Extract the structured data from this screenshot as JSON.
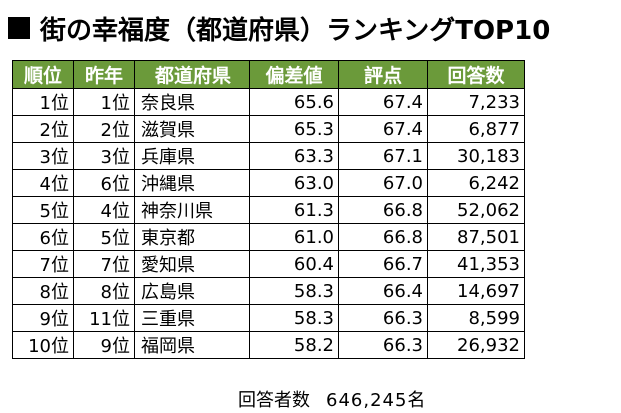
{
  "title": "街の幸福度（都道府県）ランキングTOP10",
  "table": {
    "headers": {
      "rank": "順位",
      "prev": "昨年",
      "pref": "都道府県",
      "dev": "偏差値",
      "score": "評点",
      "resp": "回答数"
    },
    "rows": [
      {
        "rank": "1位",
        "prev": "1位",
        "pref": "奈良県",
        "dev": "65.6",
        "score": "67.4",
        "resp": "7,233"
      },
      {
        "rank": "2位",
        "prev": "2位",
        "pref": "滋賀県",
        "dev": "65.3",
        "score": "67.4",
        "resp": "6,877"
      },
      {
        "rank": "3位",
        "prev": "3位",
        "pref": "兵庫県",
        "dev": "63.3",
        "score": "67.1",
        "resp": "30,183"
      },
      {
        "rank": "4位",
        "prev": "6位",
        "pref": "沖縄県",
        "dev": "63.0",
        "score": "67.0",
        "resp": "6,242"
      },
      {
        "rank": "5位",
        "prev": "4位",
        "pref": "神奈川県",
        "dev": "61.3",
        "score": "66.8",
        "resp": "52,062"
      },
      {
        "rank": "6位",
        "prev": "5位",
        "pref": "東京都",
        "dev": "61.0",
        "score": "66.8",
        "resp": "87,501"
      },
      {
        "rank": "7位",
        "prev": "7位",
        "pref": "愛知県",
        "dev": "60.4",
        "score": "66.7",
        "resp": "41,353"
      },
      {
        "rank": "8位",
        "prev": "8位",
        "pref": "広島県",
        "dev": "58.3",
        "score": "66.4",
        "resp": "14,697"
      },
      {
        "rank": "9位",
        "prev": "11位",
        "pref": "三重県",
        "dev": "58.3",
        "score": "66.3",
        "resp": "8,599"
      },
      {
        "rank": "10位",
        "prev": "9位",
        "pref": "福岡県",
        "dev": "58.2",
        "score": "66.3",
        "resp": "26,932"
      }
    ]
  },
  "footer": {
    "label": "回答者数",
    "value": "646,245名"
  },
  "colors": {
    "header_bg": "#6b9a3a",
    "header_text": "#ffffff"
  }
}
